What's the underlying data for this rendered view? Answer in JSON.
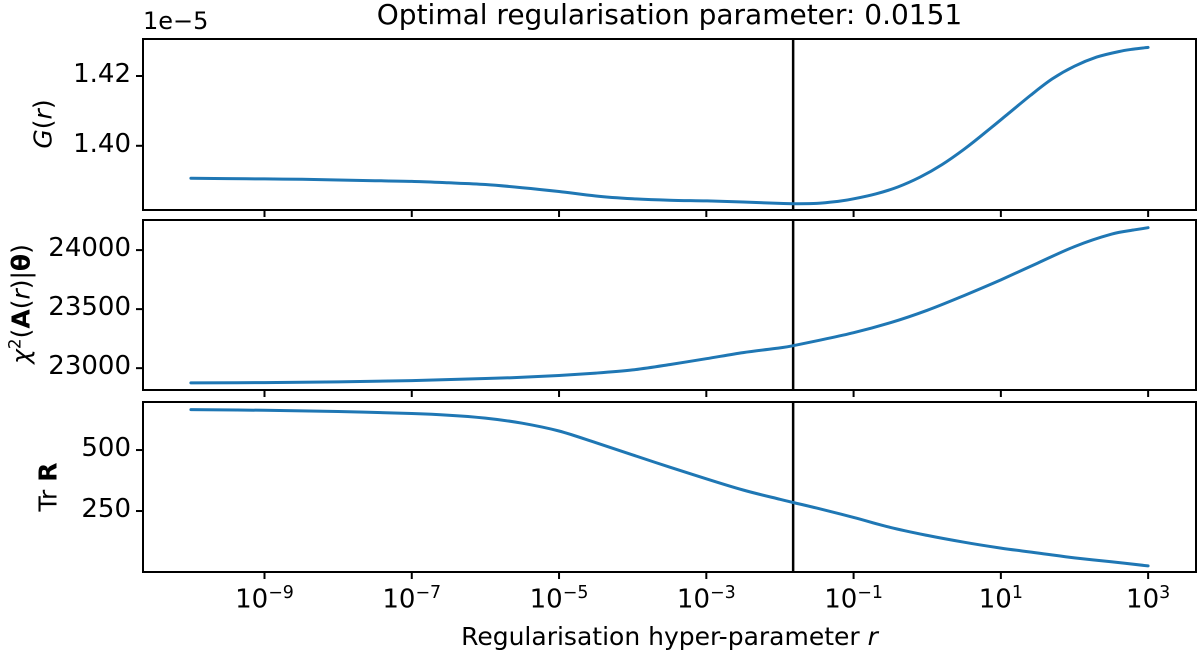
{
  "figure": {
    "title": "Optimal regularisation parameter: 0.0151",
    "optimal_r_label": "0.0151",
    "background_color": "#ffffff",
    "line_color": "#1f77b4",
    "axis_color": "#000000"
  },
  "x_axis": {
    "scale": "log",
    "xlim_log": [
      -10.65,
      3.65
    ],
    "vline_log": -1.821,
    "tick_logs": [
      -9,
      -7,
      -5,
      -3,
      -1,
      1,
      3
    ],
    "tick_labels": [
      {
        "base": "10",
        "exp": "−9"
      },
      {
        "base": "10",
        "exp": "−7"
      },
      {
        "base": "10",
        "exp": "−5"
      },
      {
        "base": "10",
        "exp": "−3"
      },
      {
        "base": "10",
        "exp": "−1"
      },
      {
        "base": "10",
        "exp": "1"
      },
      {
        "base": "10",
        "exp": "3"
      }
    ],
    "xlabel_parts": [
      {
        "t": "Regularisation hyper-parameter ",
        "s": "n"
      },
      {
        "t": "r",
        "s": "i"
      }
    ]
  },
  "chart_data": [
    {
      "type": "line",
      "name": "G(r)",
      "ylabel_parts": [
        {
          "t": "G",
          "s": "i"
        },
        {
          "t": "(",
          "s": "n"
        },
        {
          "t": "r",
          "s": "i"
        },
        {
          "t": ")",
          "s": "n"
        }
      ],
      "offset_text": "1e−5",
      "unit_scale": "1e-5",
      "ylim": [
        1.3816,
        1.4306
      ],
      "y_ticks": [
        {
          "label": "1.42",
          "value": 1.42
        },
        {
          "label": "1.40",
          "value": 1.4
        }
      ],
      "series": [
        {
          "name": "G",
          "points": [
            [
              -10,
              1.3907
            ],
            [
              -9.5,
              1.3906
            ],
            [
              -9,
              1.3905
            ],
            [
              -8.5,
              1.3904
            ],
            [
              -8,
              1.3902
            ],
            [
              -7.5,
              1.39
            ],
            [
              -7,
              1.3898
            ],
            [
              -6.5,
              1.3894
            ],
            [
              -6,
              1.3889
            ],
            [
              -5.5,
              1.388
            ],
            [
              -5,
              1.3869
            ],
            [
              -4.5,
              1.3856
            ],
            [
              -4,
              1.3848
            ],
            [
              -3.5,
              1.3844
            ],
            [
              -3,
              1.3842
            ],
            [
              -2.5,
              1.3839
            ],
            [
              -2,
              1.3835
            ],
            [
              -1.82,
              1.3834
            ],
            [
              -1.5,
              1.3835
            ],
            [
              -1.2,
              1.3841
            ],
            [
              -1,
              1.3848
            ],
            [
              -0.7,
              1.3862
            ],
            [
              -0.4,
              1.3882
            ],
            [
              -0.1,
              1.391
            ],
            [
              0.2,
              1.3946
            ],
            [
              0.5,
              1.399
            ],
            [
              0.8,
              1.404
            ],
            [
              1.1,
              1.4092
            ],
            [
              1.4,
              1.4144
            ],
            [
              1.7,
              1.4192
            ],
            [
              2,
              1.4228
            ],
            [
              2.3,
              1.4254
            ],
            [
              2.6,
              1.427
            ],
            [
              2.8,
              1.4277
            ],
            [
              3,
              1.4282
            ]
          ]
        }
      ]
    },
    {
      "type": "line",
      "name": "chi2",
      "ylabel_parts": [
        {
          "t": "χ",
          "s": "i"
        },
        {
          "t": "2",
          "s": "sup"
        },
        {
          "t": "(",
          "s": "n"
        },
        {
          "t": "A",
          "s": "b"
        },
        {
          "t": "(",
          "s": "n"
        },
        {
          "t": "r",
          "s": "i"
        },
        {
          "t": ")|",
          "s": "n"
        },
        {
          "t": "θ",
          "s": "b"
        },
        {
          "t": ")",
          "s": "n"
        }
      ],
      "offset_text": "",
      "ylim": [
        22815,
        24255
      ],
      "y_ticks": [
        {
          "label": "24000",
          "value": 24000
        },
        {
          "label": "23500",
          "value": 23500
        },
        {
          "label": "23000",
          "value": 23000
        }
      ],
      "series": [
        {
          "name": "chi2",
          "points": [
            [
              -10,
              22875
            ],
            [
              -9,
              22878
            ],
            [
              -8,
              22884
            ],
            [
              -7,
              22895
            ],
            [
              -6,
              22912
            ],
            [
              -5.5,
              22923
            ],
            [
              -5,
              22938
            ],
            [
              -4.5,
              22958
            ],
            [
              -4,
              22985
            ],
            [
              -3.5,
              23030
            ],
            [
              -3,
              23080
            ],
            [
              -2.5,
              23132
            ],
            [
              -2,
              23172
            ],
            [
              -1.82,
              23190
            ],
            [
              -1.5,
              23232
            ],
            [
              -1,
              23300
            ],
            [
              -0.5,
              23385
            ],
            [
              0,
              23490
            ],
            [
              0.5,
              23615
            ],
            [
              1,
              23748
            ],
            [
              1.5,
              23890
            ],
            [
              2,
              24030
            ],
            [
              2.5,
              24135
            ],
            [
              2.8,
              24170
            ],
            [
              3,
              24190
            ]
          ]
        }
      ]
    },
    {
      "type": "line",
      "name": "TrR",
      "ylabel_parts": [
        {
          "t": "Tr ",
          "s": "n"
        },
        {
          "t": "R",
          "s": "b"
        }
      ],
      "offset_text": "",
      "ylim": [
        0,
        697
      ],
      "y_ticks": [
        {
          "label": "500",
          "value": 500
        },
        {
          "label": "250",
          "value": 250
        }
      ],
      "series": [
        {
          "name": "TrR",
          "points": [
            [
              -10,
              666
            ],
            [
              -9,
              663
            ],
            [
              -8,
              658
            ],
            [
              -7,
              650
            ],
            [
              -6.5,
              643
            ],
            [
              -6,
              631
            ],
            [
              -5.5,
              610
            ],
            [
              -5,
              578
            ],
            [
              -4.5,
              530
            ],
            [
              -4,
              480
            ],
            [
              -3.5,
              430
            ],
            [
              -3,
              382
            ],
            [
              -2.5,
              336
            ],
            [
              -2,
              298
            ],
            [
              -1.82,
              285
            ],
            [
              -1.5,
              262
            ],
            [
              -1,
              224
            ],
            [
              -0.5,
              183
            ],
            [
              0,
              150
            ],
            [
              0.5,
              122
            ],
            [
              1,
              98
            ],
            [
              1.5,
              78
            ],
            [
              2,
              58
            ],
            [
              2.5,
              42
            ],
            [
              3,
              25
            ]
          ]
        }
      ]
    }
  ]
}
